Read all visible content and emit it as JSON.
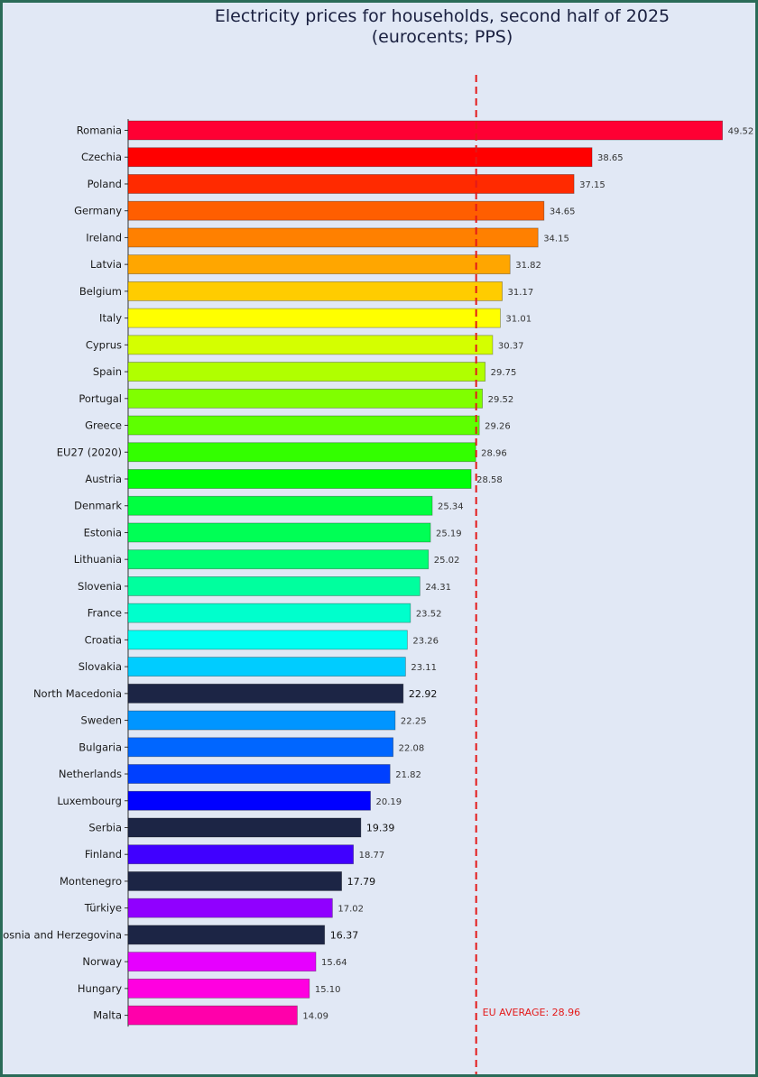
{
  "chart_data": {
    "type": "bar",
    "orientation": "horizontal",
    "title": "Electricity prices for households, second half of 2025",
    "subtitle": "(eurocents; PPS)",
    "xlabel": "",
    "ylabel": "",
    "grid": false,
    "average": {
      "label": "EU AVERAGE: 28.96",
      "value": 28.96,
      "color": "#e31a1a"
    },
    "categories": [
      "Romania",
      "Czechia",
      "Poland",
      "Germany",
      "Ireland",
      "Latvia",
      "Belgium",
      "Italy",
      "Cyprus",
      "Spain",
      "Portugal",
      "Greece",
      "EU27 (2020)",
      "Austria",
      "Denmark",
      "Estonia",
      "Lithuania",
      "Slovenia",
      "France",
      "Croatia",
      "Slovakia",
      "North Macedonia",
      "Sweden",
      "Bulgaria",
      "Netherlands",
      "Luxembourg",
      "Serbia",
      "Finland",
      "Montenegro",
      "Türkiye",
      "Bosnia and Herzegovina",
      "Norway",
      "Hungary",
      "Malta"
    ],
    "values": [
      49.52,
      38.65,
      37.15,
      34.65,
      34.15,
      31.82,
      31.17,
      31.01,
      30.37,
      29.75,
      29.52,
      29.26,
      28.96,
      28.58,
      25.34,
      25.19,
      25.02,
      24.31,
      23.52,
      23.26,
      23.11,
      22.92,
      22.25,
      22.08,
      21.82,
      20.19,
      19.39,
      18.77,
      17.79,
      17.02,
      16.37,
      15.64,
      15.1,
      14.09
    ],
    "value_labels": [
      "49.52",
      "38.65",
      "37.15",
      "34.65",
      "34.15",
      "31.82",
      "31.17",
      "31.01",
      "30.37",
      "29.75",
      "29.52",
      "29.26",
      "28.96",
      "28.58",
      "25.34",
      "25.19",
      "25.02",
      "24.31",
      "23.52",
      "23.26",
      "23.11",
      "22.92",
      "22.25",
      "22.08",
      "21.82",
      "20.19",
      "19.39",
      "18.77",
      "17.79",
      "17.02",
      "16.37",
      "15.64",
      "15.10",
      "14.09"
    ],
    "colors": [
      "#ff0033",
      "#ff0000",
      "#ff2a00",
      "#ff5e00",
      "#ff8000",
      "#ffa600",
      "#ffcc00",
      "#ffff00",
      "#d4ff00",
      "#b0ff00",
      "#80ff00",
      "#5eff00",
      "#33ff00",
      "#00ff0a",
      "#00ff40",
      "#00ff55",
      "#00ff73",
      "#00ff9e",
      "#00ffcc",
      "#00fff2",
      "#00ccff",
      "#1c2545",
      "#0095ff",
      "#0066ff",
      "#0040ff",
      "#0000ff",
      "#1c2545",
      "#4000ff",
      "#1c2545",
      "#9000ff",
      "#1c2545",
      "#e600ff",
      "#ff00e0",
      "#ff00aa"
    ],
    "dark_categories": [
      "North Macedonia",
      "Serbia",
      "Montenegro",
      "Bosnia and Herzegovina"
    ]
  }
}
